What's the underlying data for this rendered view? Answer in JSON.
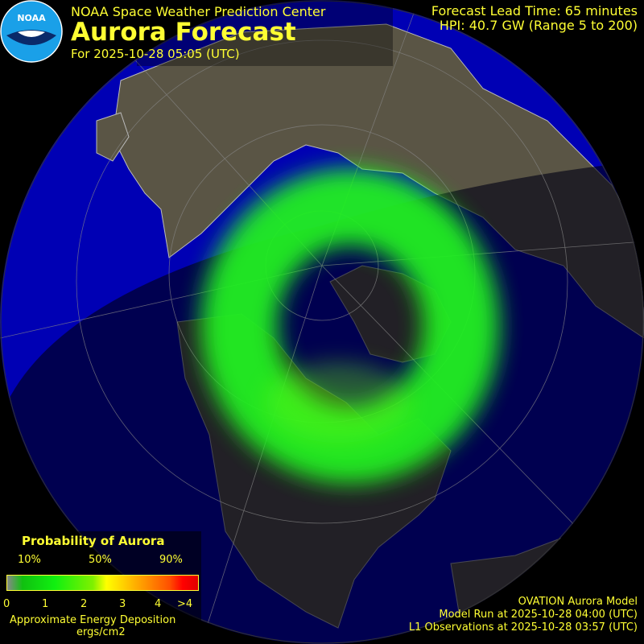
{
  "header": {
    "organization": "NOAA Space Weather Prediction Center",
    "title": "Aurora Forecast",
    "forecast_time": "For 2025-10-28 05:05 (UTC)",
    "lead_time": "Forecast Lead Time:  65 minutes",
    "hpi": "HPI:  40.7 GW (Range 5 to 200)"
  },
  "logo": {
    "text": "NOAA",
    "color": "#1aa0e8"
  },
  "legend": {
    "title": "Probability of Aurora",
    "percent_labels": [
      "10%",
      "50%",
      "90%"
    ],
    "scale_labels": [
      "0",
      "1",
      "2",
      "3",
      "4",
      ">4"
    ],
    "energy_label": "Approximate Energy Deposition",
    "units": "ergs/cm2",
    "colors": [
      "#888888",
      "#10f010",
      "#ffff00",
      "#ffa000",
      "#ff0000"
    ]
  },
  "footer": {
    "model": "OVATION Aurora Model",
    "model_run": "Model Run at 2025-10-28 04:00 (UTC)",
    "observations": "L1 Observations at 2025-10-28 03:57 (UTC)"
  },
  "map": {
    "projection": "north-polar orthographic",
    "ocean_day": "#0000b4",
    "ocean_night": "#00003c",
    "land_day": "#5a5545",
    "land_night": "#22221a",
    "aurora_color": "#20f020"
  }
}
